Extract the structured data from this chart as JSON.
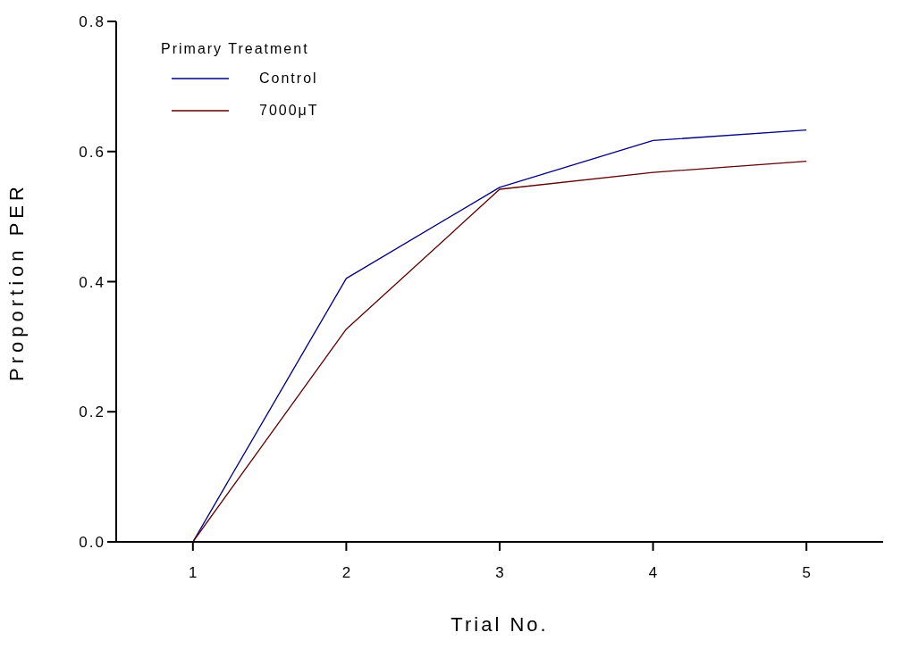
{
  "chart_data": {
    "type": "line",
    "xlabel": "Trial No.",
    "ylabel": "Proportion PER",
    "legend_title": "Primary Treatment",
    "x": [
      1,
      2,
      3,
      4,
      5
    ],
    "series": [
      {
        "name": "Control",
        "color": "#000080",
        "values": [
          0,
          0.405,
          0.545,
          0.617,
          0.633
        ]
      },
      {
        "name": "7000μT",
        "color": "#5c0000",
        "values": [
          0,
          0.327,
          0.542,
          0.568,
          0.585
        ]
      }
    ],
    "xlim": [
      0.5,
      5.5
    ],
    "xticks": [
      1,
      2,
      3,
      4,
      5
    ],
    "ylim": [
      0,
      0.8
    ],
    "yticks": [
      {
        "value": 0,
        "label": "0.0"
      },
      0.2,
      0.4,
      0.6,
      0.8
    ],
    "grid": false,
    "legend": "top left",
    "marker": "none",
    "line_style": "solid"
  }
}
